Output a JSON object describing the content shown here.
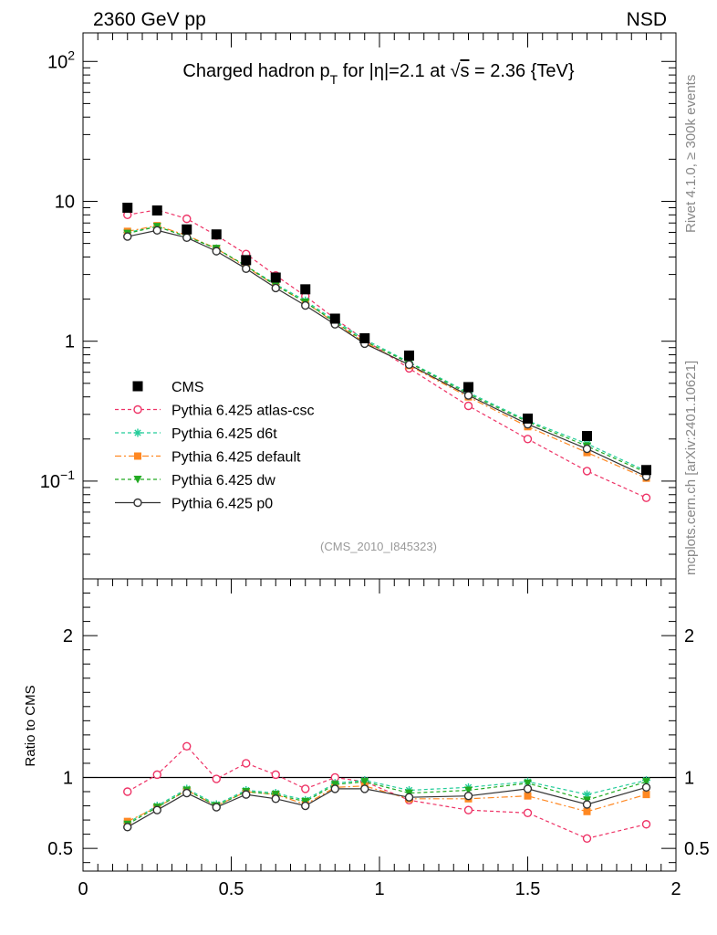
{
  "header": {
    "left": "2360 GeV pp",
    "right": "NSD"
  },
  "side_text": {
    "top": "Rivet 4.1.0, ≥ 300k events",
    "bottom": "mcplots.cern.ch [arXiv:2401.10621]"
  },
  "annotation": "(CMS_2010_I845323)",
  "chart_data": [
    {
      "type": "scatter",
      "panel": "main",
      "title": {
        "pre": "Charged hadron p",
        "sub": "T",
        "mid": " for |η|=2.1 at ",
        "sqrt": "√",
        "s": "s",
        "post": " = 2.36 {TeV}"
      },
      "yscale": "log",
      "ylim": [
        0.02,
        160
      ],
      "xlim": [
        0,
        2
      ],
      "y_tick_labels": [
        {
          "value": 100,
          "base": "10",
          "exp": "2"
        },
        {
          "value": 10,
          "base": "10",
          "exp": ""
        },
        {
          "value": 1,
          "base": "1",
          "exp": ""
        },
        {
          "value": 0.1,
          "base": "10",
          "exp": "−1"
        }
      ],
      "x": [
        0.15,
        0.25,
        0.35,
        0.45,
        0.55,
        0.65,
        0.75,
        0.85,
        0.95,
        1.1,
        1.3,
        1.5,
        1.7,
        1.9
      ],
      "series": [
        {
          "name": "CMS",
          "color": "#000000",
          "marker": "square",
          "line": "none",
          "values": [
            9.0,
            8.6,
            6.3,
            5.8,
            3.8,
            2.85,
            2.35,
            1.45,
            1.05,
            0.79,
            0.47,
            0.28,
            0.21,
            0.12
          ]
        },
        {
          "name": "Pythia 6.425 atlas-csc",
          "color": "#ee3366",
          "marker": "open-circle",
          "line": "dashed",
          "values": [
            8.0,
            8.7,
            7.5,
            5.7,
            4.2,
            2.95,
            2.1,
            1.45,
            1.02,
            0.64,
            0.345,
            0.2,
            0.118,
            0.076
          ]
        },
        {
          "name": "Pythia 6.425 d6t",
          "color": "#22cc99",
          "marker": "star",
          "line": "dashed",
          "values": [
            6.0,
            6.6,
            5.6,
            4.6,
            3.45,
            2.55,
            1.95,
            1.4,
            1.03,
            0.71,
            0.43,
            0.27,
            0.185,
            0.118
          ]
        },
        {
          "name": "Pythia 6.425 default",
          "color": "#ff8822",
          "marker": "square",
          "line": "dashdot",
          "values": [
            6.1,
            6.7,
            5.7,
            4.6,
            3.4,
            2.5,
            1.9,
            1.35,
            0.98,
            0.67,
            0.4,
            0.245,
            0.16,
            0.105
          ]
        },
        {
          "name": "Pythia 6.425 dw",
          "color": "#22aa22",
          "marker": "triangle-down",
          "line": "dashed",
          "values": [
            5.9,
            6.6,
            5.6,
            4.6,
            3.45,
            2.5,
            1.9,
            1.37,
            1.0,
            0.7,
            0.42,
            0.265,
            0.178,
            0.115
          ]
        },
        {
          "name": "Pythia 6.425 p0",
          "color": "#333333",
          "marker": "open-circle",
          "line": "solid",
          "values": [
            5.6,
            6.2,
            5.5,
            4.4,
            3.3,
            2.4,
            1.8,
            1.32,
            0.96,
            0.68,
            0.41,
            0.255,
            0.17,
            0.108
          ]
        }
      ]
    },
    {
      "type": "scatter",
      "panel": "ratio",
      "ylabel": "Ratio to CMS",
      "ylim": [
        0.34,
        2.4
      ],
      "xlim": [
        0,
        2
      ],
      "y_tick_labels": [
        {
          "value": 2,
          "label": "2"
        },
        {
          "value": 1,
          "label": "1"
        },
        {
          "value": 0.5,
          "label": "0.5"
        }
      ],
      "x_tick_labels": [
        {
          "value": 0,
          "label": "0"
        },
        {
          "value": 0.5,
          "label": "0.5"
        },
        {
          "value": 1,
          "label": "1"
        },
        {
          "value": 1.5,
          "label": "1.5"
        },
        {
          "value": 2,
          "label": "2"
        }
      ],
      "reference_line": 1,
      "x": [
        0.15,
        0.25,
        0.35,
        0.45,
        0.55,
        0.65,
        0.75,
        0.85,
        0.95,
        1.1,
        1.3,
        1.5,
        1.7,
        1.9
      ],
      "series": [
        {
          "name": "Pythia 6.425 atlas-csc",
          "color": "#ee3366",
          "marker": "open-circle",
          "line": "dashed",
          "values": [
            0.9,
            1.02,
            1.22,
            0.99,
            1.1,
            1.02,
            0.92,
            1.0,
            0.97,
            0.84,
            0.77,
            0.75,
            0.57,
            0.67
          ]
        },
        {
          "name": "Pythia 6.425 d6t",
          "color": "#22cc99",
          "marker": "star",
          "line": "dashed",
          "values": [
            0.68,
            0.8,
            0.92,
            0.81,
            0.91,
            0.89,
            0.84,
            0.96,
            0.98,
            0.91,
            0.93,
            0.97,
            0.88,
            0.98
          ]
        },
        {
          "name": "Pythia 6.425 default",
          "color": "#ff8822",
          "marker": "square",
          "line": "dashdot",
          "values": [
            0.69,
            0.79,
            0.91,
            0.8,
            0.9,
            0.88,
            0.81,
            0.93,
            0.94,
            0.85,
            0.85,
            0.87,
            0.76,
            0.88
          ]
        },
        {
          "name": "Pythia 6.425 dw",
          "color": "#22aa22",
          "marker": "triangle-down",
          "line": "dashed",
          "values": [
            0.67,
            0.79,
            0.91,
            0.8,
            0.9,
            0.88,
            0.83,
            0.95,
            0.97,
            0.89,
            0.91,
            0.96,
            0.84,
            0.97
          ]
        },
        {
          "name": "Pythia 6.425 p0",
          "color": "#333333",
          "marker": "open-circle",
          "line": "solid",
          "values": [
            0.65,
            0.77,
            0.89,
            0.79,
            0.88,
            0.85,
            0.8,
            0.92,
            0.92,
            0.86,
            0.87,
            0.92,
            0.81,
            0.93
          ]
        }
      ]
    }
  ]
}
